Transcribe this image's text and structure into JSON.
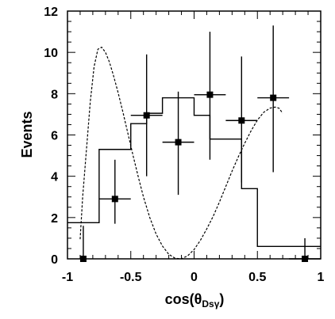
{
  "chart_data": {
    "type": "scatter",
    "xlabel": "cos(θ",
    "xlabel_sub": "Dsγ",
    "xlabel_close": ")",
    "ylabel": "Events",
    "xlim": [
      -1,
      1
    ],
    "ylim": [
      0,
      12
    ],
    "xticks": [
      -1,
      -0.5,
      0,
      0.5,
      1
    ],
    "xtick_labels": [
      "-1",
      "-0.5",
      "0",
      "0.5",
      "1"
    ],
    "yticks": [
      0,
      2,
      4,
      6,
      8,
      10,
      12
    ],
    "ytick_labels": [
      "0",
      "2",
      "4",
      "6",
      "8",
      "10",
      "12"
    ],
    "data_points": [
      {
        "x": -0.875,
        "y": 0,
        "xerr": 0,
        "ylo": 0,
        "yhi": 1.6
      },
      {
        "x": -0.625,
        "y": 2.9,
        "xerr": 0.125,
        "ylo": 1.7,
        "yhi": 4.8
      },
      {
        "x": -0.375,
        "y": 6.95,
        "xerr": 0.125,
        "ylo": 4.0,
        "yhi": 9.9
      },
      {
        "x": -0.125,
        "y": 5.65,
        "xerr": 0.125,
        "ylo": 3.1,
        "yhi": 8.1
      },
      {
        "x": 0.125,
        "y": 7.95,
        "xerr": 0.125,
        "ylo": 4.8,
        "yhi": 11.0
      },
      {
        "x": 0.375,
        "y": 6.7,
        "xerr": 0.125,
        "ylo": 3.7,
        "yhi": 9.8
      },
      {
        "x": 0.625,
        "y": 7.8,
        "xerr": 0.125,
        "ylo": 4.2,
        "yhi": 11.3
      },
      {
        "x": 0.875,
        "y": 0,
        "xerr": 0.125,
        "ylo": 0,
        "yhi": 1.0
      }
    ],
    "histogram": {
      "edges": [
        -1,
        -0.75,
        -0.5,
        -0.375,
        -0.25,
        0,
        0.125,
        0.375,
        0.5,
        1
      ],
      "values": [
        1.75,
        5.3,
        6.55,
        7.05,
        7.8,
        6.95,
        5.8,
        3.4,
        0.6
      ]
    },
    "dashed_curve": [
      [
        -0.9,
        0.95
      ],
      [
        -0.88,
        3.0
      ],
      [
        -0.85,
        5.3
      ],
      [
        -0.82,
        7.6
      ],
      [
        -0.79,
        9.3
      ],
      [
        -0.76,
        10.15
      ],
      [
        -0.73,
        10.25
      ],
      [
        -0.7,
        10.0
      ],
      [
        -0.67,
        9.55
      ],
      [
        -0.64,
        8.95
      ],
      [
        -0.6,
        8.05
      ],
      [
        -0.56,
        7.05
      ],
      [
        -0.52,
        6.0
      ],
      [
        -0.48,
        4.95
      ],
      [
        -0.44,
        3.95
      ],
      [
        -0.4,
        3.0
      ],
      [
        -0.35,
        2.0
      ],
      [
        -0.3,
        1.2
      ],
      [
        -0.25,
        0.62
      ],
      [
        -0.2,
        0.22
      ],
      [
        -0.15,
        0.03
      ],
      [
        -0.1,
        0.0
      ],
      [
        -0.05,
        0.15
      ],
      [
        0.0,
        0.45
      ],
      [
        0.05,
        0.9
      ],
      [
        0.1,
        1.45
      ],
      [
        0.15,
        2.05
      ],
      [
        0.2,
        2.75
      ],
      [
        0.25,
        3.5
      ],
      [
        0.3,
        4.25
      ],
      [
        0.35,
        4.95
      ],
      [
        0.4,
        5.6
      ],
      [
        0.45,
        6.2
      ],
      [
        0.5,
        6.72
      ],
      [
        0.55,
        7.1
      ],
      [
        0.6,
        7.3
      ],
      [
        0.64,
        7.35
      ],
      [
        0.67,
        7.3
      ],
      [
        0.7,
        7.05
      ]
    ]
  }
}
